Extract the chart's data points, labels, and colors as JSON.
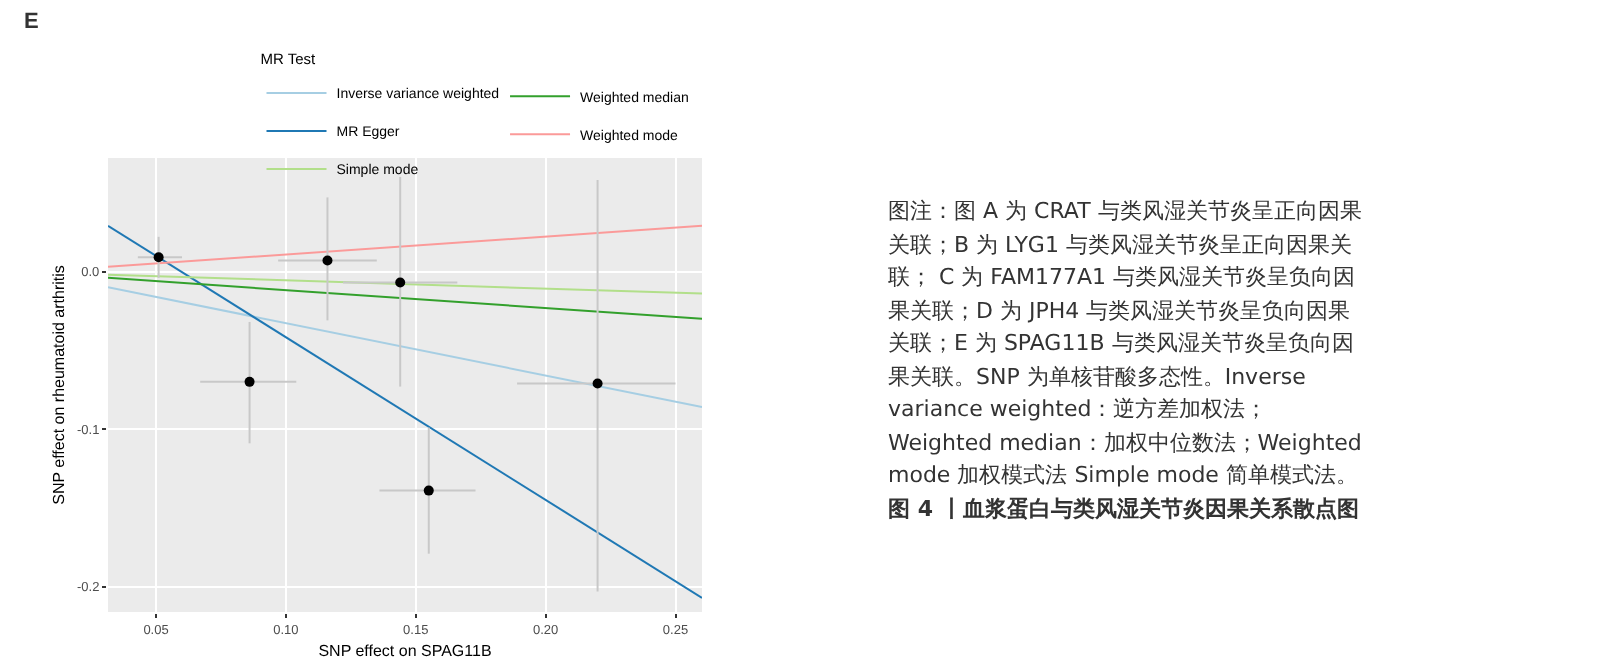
{
  "chart_data": {
    "type": "scatter",
    "xlabel": "SNP effect on SPAG11B",
    "ylabel": "SNP effect on rheumatoid arthritis",
    "legend_title": "MR Test",
    "legend": "top",
    "grid": true,
    "line_style": "solid",
    "xlim": [
      0.0315,
      0.2602
    ],
    "xticks": [
      0.05,
      {
        "value": 0.1,
        "label": "0.10"
      },
      0.15,
      {
        "value": 0.2,
        "label": "0.20"
      },
      0.25
    ],
    "ylim": [
      -0.216,
      0.072
    ],
    "yticks": [
      {
        "value": -0.2,
        "label": "-0.2"
      },
      {
        "value": -0.1,
        "label": "-0.1"
      },
      {
        "value": 0,
        "label": "0.0"
      }
    ],
    "series": [
      {
        "type": "scatter",
        "marker": "circle",
        "color": "#000000",
        "x": [
          0.051,
          0.086,
          0.116,
          0.144,
          0.155,
          0.22
        ],
        "values": [
          0.009,
          -0.07,
          0.007,
          -0.007,
          -0.139,
          -0.071
        ],
        "errors": [
          [
            -0.004,
            0.022
          ],
          [
            -0.109,
            -0.032
          ],
          [
            -0.031,
            0.047
          ],
          [
            -0.073,
            0.06
          ],
          [
            -0.179,
            -0.099
          ],
          [
            -0.203,
            0.058
          ]
        ],
        "xerrors": [
          [
            0.043,
            0.06
          ],
          [
            0.067,
            0.104
          ],
          [
            0.097,
            0.135
          ],
          [
            0.122,
            0.166
          ],
          [
            0.136,
            0.173
          ],
          [
            0.189,
            0.25
          ]
        ]
      },
      {
        "type": "line",
        "name": "Inverse variance weighted",
        "color": "#a6cee3",
        "x": [
          0.0315,
          0.2602
        ],
        "values": [
          -0.01,
          -0.086
        ]
      },
      {
        "type": "line",
        "name": "MR Egger",
        "color": "#1f78b4",
        "x": [
          0.0315,
          0.2602
        ],
        "values": [
          0.029,
          -0.207
        ]
      },
      {
        "type": "line",
        "name": "Simple mode",
        "color": "#b2df8a",
        "x": [
          0.0315,
          0.2602
        ],
        "values": [
          -0.002,
          -0.014
        ]
      },
      {
        "type": "line",
        "name": "Weighted median",
        "color": "#33a02c",
        "x": [
          0.0315,
          0.2602
        ],
        "values": [
          -0.004,
          -0.03
        ]
      },
      {
        "type": "line",
        "name": "Weighted mode",
        "color": "#fb9a99",
        "x": [
          0.0315,
          0.2602
        ],
        "values": [
          0.003,
          0.029
        ]
      }
    ],
    "annotations": [
      "E",
      "图注：图 A 为 CRAT 与类风湿关节炎呈正向因果关联；B 为 LYG1 与类风湿关节炎呈正向因果关联； C 为 FAM177A1 与类风湿关节炎呈负向因果关联；D 为 JPH4 与类风湿关节炎呈负向因果关联；E 为 SPAG11B 与类风湿关节炎呈负向因果关联。SNP 为单核苷酸多态性。Inverse variance weighted：逆方差加权法；Weighted median：加权中位数法；Weighted mode 加权模式法 Simple mode 简单模式法。",
      "图 4 丨血浆蛋白与类风湿关节炎因果关系散点图"
    ]
  }
}
